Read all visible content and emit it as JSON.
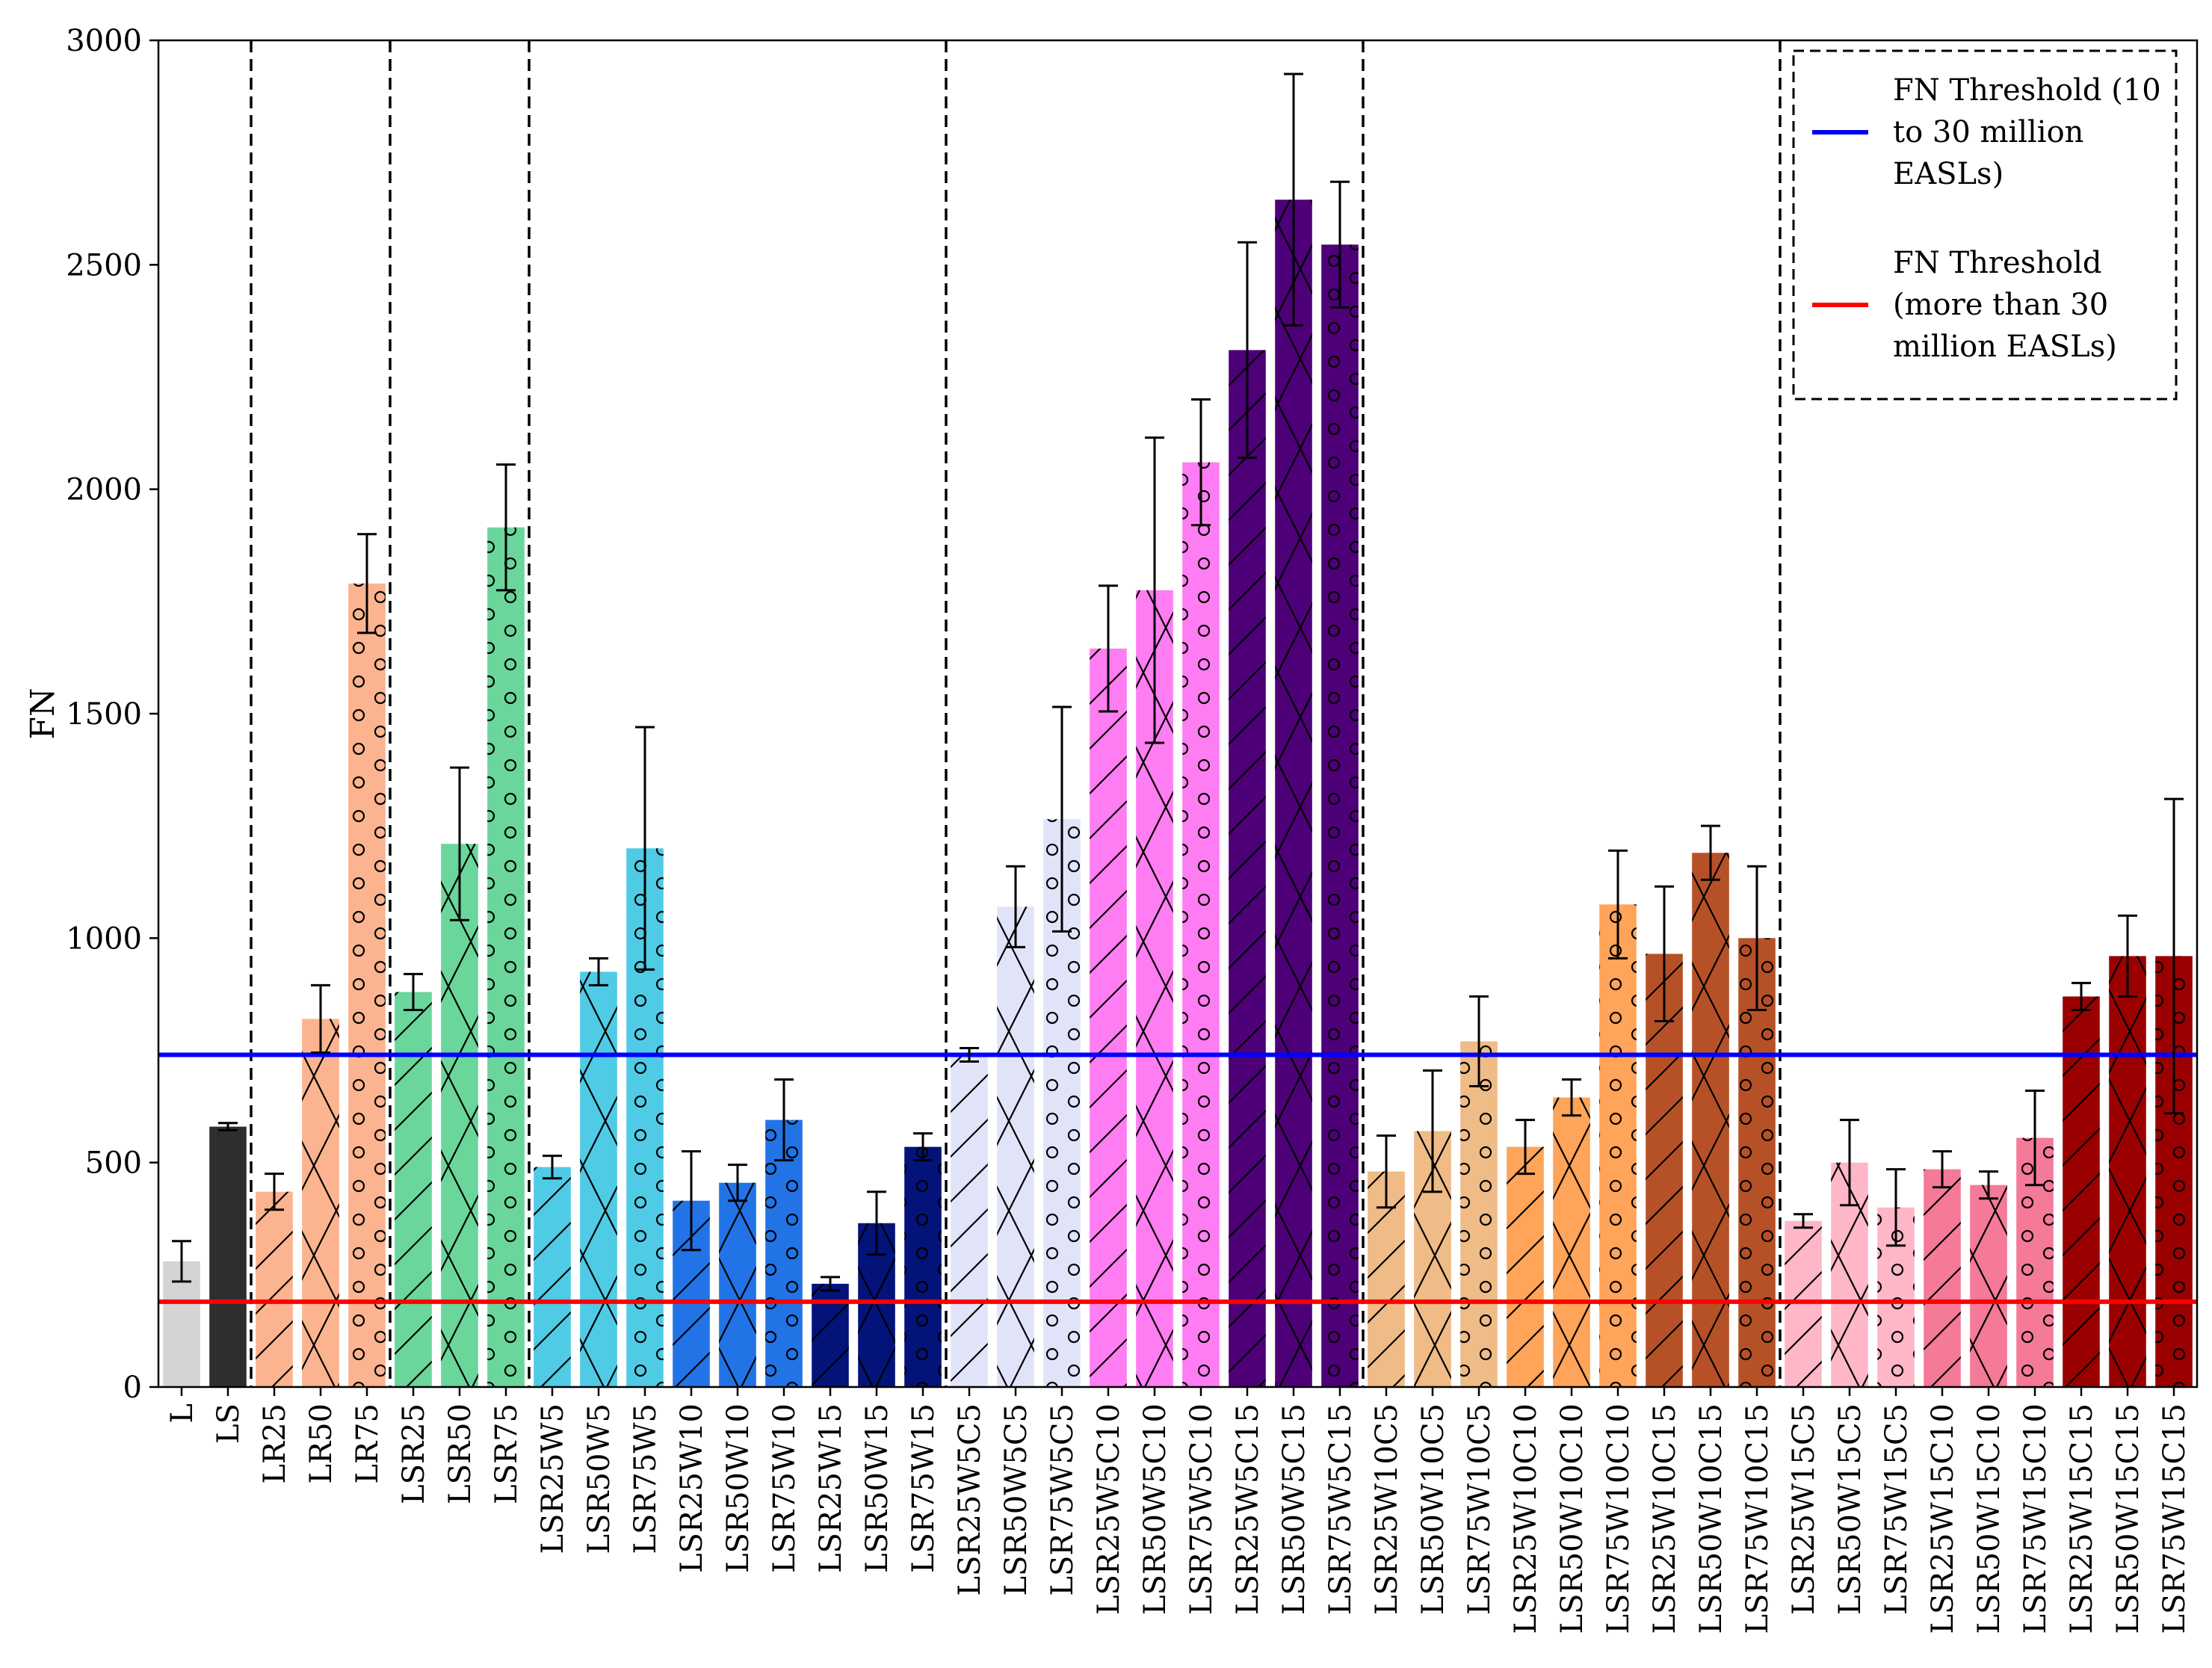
{
  "chart_data": {
    "type": "bar",
    "title": "",
    "xlabel": "",
    "ylabel": "FN",
    "ylim": [
      0,
      3000
    ],
    "yticks": [
      0,
      500,
      1000,
      1500,
      2000,
      2500,
      3000
    ],
    "grid": false,
    "categories": [
      "L",
      "LS",
      "LR25",
      "LR50",
      "LR75",
      "LSR25",
      "LSR50",
      "LSR75",
      "LSR25W5",
      "LSR50W5",
      "LSR75W5",
      "LSR25W10",
      "LSR50W10",
      "LSR75W10",
      "LSR25W15",
      "LSR50W15",
      "LSR75W15",
      "LSR25W5C5",
      "LSR50W5C5",
      "LSR75W5C5",
      "LSR25W5C10",
      "LSR50W5C10",
      "LSR75W5C10",
      "LSR25W5C15",
      "LSR50W5C15",
      "LSR75W5C15",
      "LSR25W10C5",
      "LSR50W10C5",
      "LSR75W10C5",
      "LSR25W10C10",
      "LSR50W10C10",
      "LSR75W10C10",
      "LSR25W10C15",
      "LSR50W10C15",
      "LSR75W10C15",
      "LSR25W15C5",
      "LSR50W15C5",
      "LSR75W15C5",
      "LSR25W15C10",
      "LSR50W15C10",
      "LSR75W15C10",
      "LSR25W15C15",
      "LSR50W15C15",
      "LSR75W15C15"
    ],
    "values": [
      280,
      580,
      435,
      820,
      1790,
      880,
      1210,
      1915,
      490,
      925,
      1200,
      415,
      455,
      595,
      230,
      365,
      535,
      740,
      1070,
      1265,
      1645,
      1775,
      2060,
      2310,
      2645,
      2545,
      480,
      570,
      770,
      535,
      645,
      1075,
      965,
      1190,
      1000,
      370,
      500,
      400,
      485,
      450,
      555,
      870,
      960,
      960
    ],
    "errors": [
      45,
      8,
      40,
      75,
      110,
      40,
      170,
      140,
      25,
      30,
      270,
      110,
      40,
      90,
      15,
      70,
      30,
      15,
      90,
      250,
      140,
      340,
      140,
      240,
      280,
      140,
      80,
      135,
      100,
      60,
      40,
      120,
      150,
      60,
      160,
      15,
      95,
      85,
      40,
      30,
      105,
      30,
      90,
      350
    ],
    "colors": [
      "#d4d4d4",
      "#2e2e2e",
      "#fbb48f",
      "#fbb48f",
      "#fbb48f",
      "#6ad69c",
      "#6ad69c",
      "#6ad69c",
      "#4fcbe6",
      "#4fcbe6",
      "#4fcbe6",
      "#2173e6",
      "#2173e6",
      "#2173e6",
      "#03137a",
      "#03137a",
      "#03137a",
      "#e1e4f8",
      "#e1e4f8",
      "#e1e4f8",
      "#ff7df2",
      "#ff7df2",
      "#ff7df2",
      "#4d0077",
      "#4d0077",
      "#4d0077",
      "#efbb86",
      "#efbb86",
      "#efbb86",
      "#ffa459",
      "#ffa459",
      "#ffa459",
      "#b65127",
      "#b65127",
      "#b65127",
      "#ffb7c8",
      "#ffb7c8",
      "#ffb7c8",
      "#f47a98",
      "#f47a98",
      "#f47a98",
      "#9b0000",
      "#9b0000",
      "#9b0000"
    ],
    "hatches": [
      "none",
      "none",
      "slash",
      "cross",
      "circle",
      "slash",
      "cross",
      "circle",
      "slash",
      "cross",
      "circle",
      "slash",
      "cross",
      "circle",
      "slash",
      "cross",
      "circle",
      "slash",
      "cross",
      "circle",
      "slash",
      "cross",
      "circle",
      "slash",
      "cross",
      "circle",
      "slash",
      "cross",
      "circle",
      "slash",
      "cross",
      "circle",
      "slash",
      "cross",
      "circle",
      "slash",
      "cross",
      "circle",
      "slash",
      "cross",
      "circle",
      "slash",
      "cross",
      "circle"
    ],
    "group_dividers_after": [
      "LS",
      "LR75",
      "LSR75",
      "LSR75W15",
      "LSR75W5C15",
      "LSR75W10C15"
    ],
    "thresholds": [
      {
        "label": "FN Threshold (10 to 30 million EASLs)",
        "value": 740,
        "color": "#0000ff"
      },
      {
        "label": "FN Threshold (more than 30 million EASLs)",
        "value": 190,
        "color": "#ff0000"
      }
    ],
    "legend": {
      "position": "top-right",
      "entries": [
        {
          "lines": [
            "FN Threshold (10",
            "to 30 million",
            "EASLs)"
          ],
          "color": "#0000ff"
        },
        {
          "lines": [
            "FN Threshold",
            "(more than 30",
            "million EASLs)"
          ],
          "color": "#ff0000"
        }
      ]
    }
  }
}
